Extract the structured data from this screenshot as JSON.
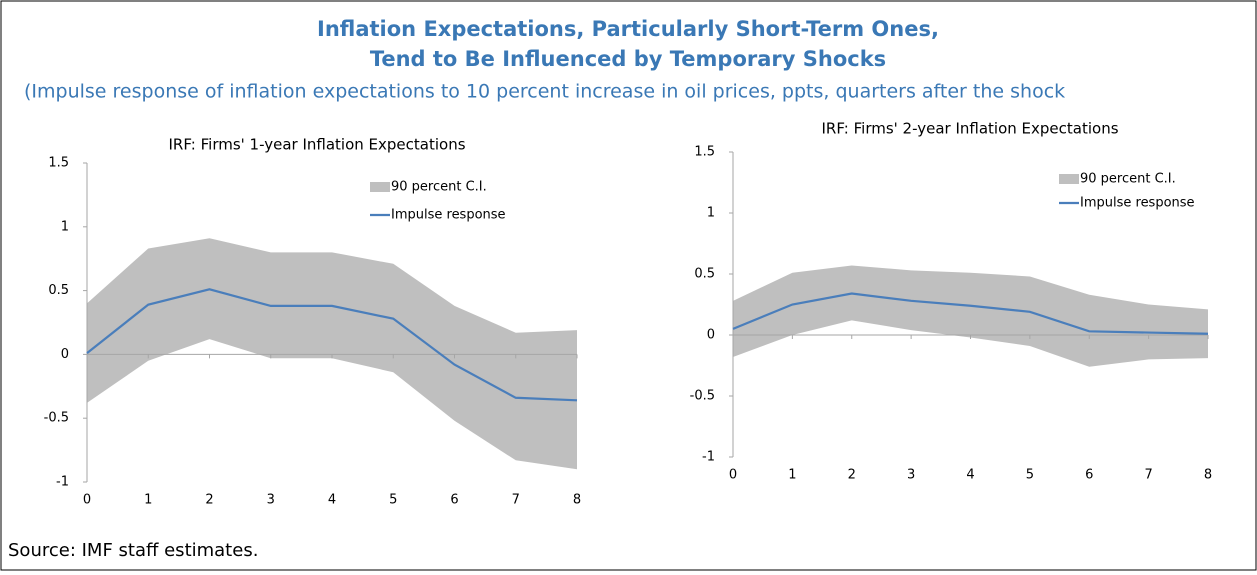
{
  "header": {
    "title": [
      "Inflation Expectations, Particularly Short-Term Ones,",
      "Tend to Be Influenced by Temporary Shocks"
    ],
    "subtitle": "(Impulse response of inflation expectations to 10 percent increase in oil prices, ppts, quarters after the shock"
  },
  "chart_data": [
    {
      "type": "line",
      "title": "IRF: Firms' 1-year Inflation Expectations",
      "x": [
        0,
        1,
        2,
        3,
        4,
        5,
        6,
        7,
        8
      ],
      "xlim": [
        0,
        8
      ],
      "xticks": [
        0,
        1,
        2,
        3,
        4,
        5,
        6,
        7,
        8
      ],
      "ylim": [
        -1,
        1.5
      ],
      "yticks": [
        -1,
        -0.5,
        0,
        0.5,
        1,
        1.5
      ],
      "legend": "upper right",
      "series": [
        {
          "name": "90 percent C.I.",
          "color": "#bfbfbf",
          "kind": "band",
          "upper": [
            0.4,
            0.83,
            0.91,
            0.8,
            0.8,
            0.71,
            0.38,
            0.17,
            0.19
          ],
          "lower": [
            -0.38,
            -0.05,
            0.12,
            -0.03,
            -0.03,
            -0.14,
            -0.52,
            -0.83,
            -0.9
          ]
        },
        {
          "name": "Impulse response",
          "color": "#4a7ebb",
          "values": [
            0.01,
            0.39,
            0.51,
            0.38,
            0.38,
            0.28,
            -0.08,
            -0.34,
            -0.36
          ]
        }
      ]
    },
    {
      "type": "line",
      "title": "IRF: Firms' 2-year Inflation Expectations",
      "x": [
        0,
        1,
        2,
        3,
        4,
        5,
        6,
        7,
        8
      ],
      "xlim": [
        0,
        8
      ],
      "xticks": [
        0,
        1,
        2,
        3,
        4,
        5,
        6,
        7,
        8
      ],
      "ylim": [
        -1,
        1.5
      ],
      "yticks": [
        -1,
        -0.5,
        0,
        0.5,
        1,
        1.5
      ],
      "legend": "upper right",
      "series": [
        {
          "name": "90 percent C.I.",
          "color": "#bfbfbf",
          "kind": "band",
          "upper": [
            0.28,
            0.51,
            0.57,
            0.53,
            0.51,
            0.48,
            0.33,
            0.25,
            0.21
          ],
          "lower": [
            -0.18,
            0.0,
            0.12,
            0.04,
            -0.02,
            -0.09,
            -0.26,
            -0.2,
            -0.19
          ]
        },
        {
          "name": "Impulse response",
          "color": "#4a7ebb",
          "values": [
            0.05,
            0.25,
            0.34,
            0.28,
            0.24,
            0.19,
            0.03,
            0.02,
            0.01
          ]
        }
      ]
    }
  ],
  "source": "Source: IMF staff estimates."
}
